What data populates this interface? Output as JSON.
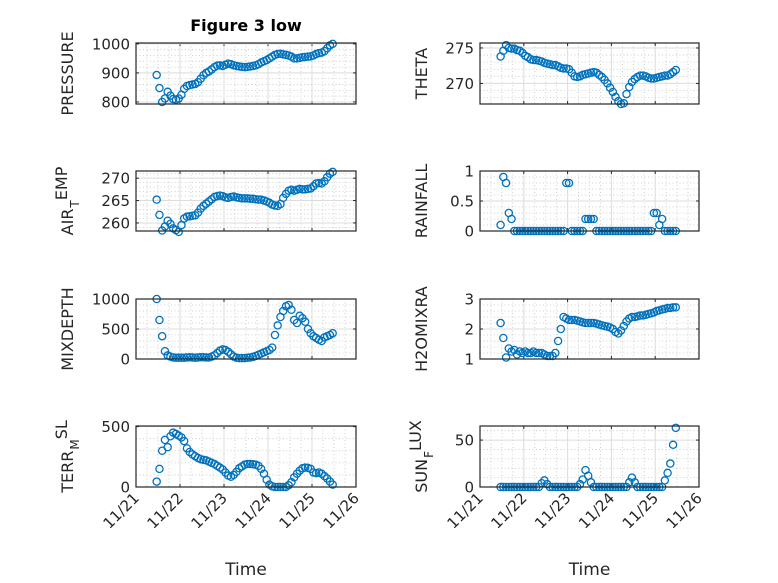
{
  "chart_data": {
    "type": "scatter",
    "title": "Figure 3 low",
    "xlabel": "Time",
    "xlim": [
      0,
      5
    ],
    "xticks": [
      0,
      1,
      2,
      3,
      4,
      5
    ],
    "xtick_labels": [
      "11/21",
      "11/22",
      "11/23",
      "11/24",
      "11/25",
      "11/26"
    ],
    "x_unit": "days since 11/21 00:00",
    "grid": true,
    "marker": "open circle",
    "color": "#0072BD",
    "x": [
      0.47,
      0.533,
      0.595,
      0.658,
      0.72,
      0.783,
      0.845,
      0.908,
      0.97,
      1.033,
      1.095,
      1.158,
      1.22,
      1.283,
      1.345,
      1.408,
      1.47,
      1.533,
      1.595,
      1.658,
      1.72,
      1.783,
      1.845,
      1.908,
      1.97,
      2.033,
      2.095,
      2.158,
      2.22,
      2.283,
      2.345,
      2.408,
      2.47,
      2.533,
      2.595,
      2.658,
      2.72,
      2.783,
      2.845,
      2.908,
      2.97,
      3.033,
      3.095,
      3.158,
      3.22,
      3.283,
      3.345,
      3.408,
      3.47,
      3.533,
      3.595,
      3.658,
      3.72,
      3.783,
      3.845,
      3.908,
      3.97,
      4.033,
      4.095,
      4.158,
      4.22,
      4.283,
      4.345,
      4.408,
      4.47
    ],
    "panels": [
      {
        "ylabel": [
          "PRESSURE"
        ],
        "ylim": [
          793,
          1003
        ],
        "yticks": [
          800,
          900,
          1000
        ],
        "yminor": 20,
        "values": [
          893,
          848,
          800,
          812,
          835,
          822,
          810,
          808,
          812,
          825,
          845,
          855,
          858,
          860,
          862,
          868,
          880,
          892,
          900,
          905,
          912,
          920,
          925,
          926,
          924,
          928,
          932,
          930,
          926,
          924,
          922,
          921,
          920,
          921,
          922,
          924,
          926,
          930,
          936,
          940,
          944,
          950,
          956,
          962,
          965,
          966,
          964,
          962,
          960,
          956,
          950,
          950,
          952,
          954,
          955,
          956,
          957,
          960,
          965,
          968,
          970,
          975,
          985,
          995,
          1000
        ]
      },
      {
        "ylabel": [
          "THETA"
        ],
        "ylim": [
          267.1,
          275.7
        ],
        "yticks": [
          270,
          275
        ],
        "yminor": 1,
        "values": [
          273.8,
          274.6,
          275.4,
          275.0,
          274.9,
          274.9,
          274.7,
          274.6,
          274.3,
          273.9,
          273.7,
          273.4,
          273.3,
          273.3,
          273.2,
          273.1,
          272.9,
          272.8,
          272.7,
          272.6,
          272.6,
          272.4,
          272.2,
          272.1,
          272.1,
          272.0,
          271.5,
          271.0,
          270.9,
          271.0,
          271.2,
          271.3,
          271.4,
          271.5,
          271.6,
          271.5,
          271.2,
          270.9,
          270.5,
          270.0,
          269.4,
          268.8,
          268.1,
          267.5,
          267.1,
          267.2,
          268.5,
          269.5,
          270.2,
          270.6,
          270.9,
          271.1,
          271.1,
          271.0,
          270.8,
          270.7,
          270.7,
          270.8,
          270.9,
          271.0,
          271.1,
          271.1,
          271.3,
          271.6,
          271.9
        ]
      },
      {
        "ylabel": [
          "AIR",
          "T",
          "EMP"
        ],
        "ylim": [
          258.2,
          271.6
        ],
        "yticks": [
          260,
          265,
          270
        ],
        "yminor": 1,
        "values": [
          265.2,
          261.8,
          258.3,
          259.2,
          260.5,
          259.8,
          258.8,
          258.4,
          258.0,
          259.5,
          261.0,
          261.4,
          261.5,
          261.6,
          261.7,
          262.3,
          263.2,
          263.8,
          264.3,
          264.8,
          265.3,
          265.8,
          266.0,
          266.1,
          266.0,
          265.7,
          265.6,
          265.8,
          265.9,
          265.7,
          265.6,
          265.5,
          265.5,
          265.5,
          265.4,
          265.4,
          265.3,
          265.2,
          265.2,
          265.0,
          264.8,
          264.5,
          264.1,
          263.9,
          263.8,
          264.2,
          265.6,
          266.5,
          267.2,
          267.4,
          267.2,
          267.4,
          267.6,
          267.5,
          267.5,
          267.6,
          267.7,
          268.2,
          268.8,
          268.9,
          268.8,
          269.3,
          270.2,
          271.0,
          271.4
        ]
      },
      {
        "ylabel": [
          "RAINFALL"
        ],
        "ylim": [
          0,
          1
        ],
        "yticks": [
          0,
          0.5,
          1
        ],
        "yminor": 0.1,
        "values": [
          0.1,
          0.9,
          0.8,
          0.3,
          0.2,
          0,
          0,
          0,
          0,
          0,
          0,
          0,
          0,
          0,
          0,
          0,
          0,
          0,
          0,
          0,
          0,
          0,
          0,
          0,
          0.8,
          0.8,
          0,
          0,
          0,
          0,
          0,
          0.2,
          0.2,
          0.2,
          0.2,
          0,
          0,
          0,
          0,
          0,
          0,
          0,
          0,
          0,
          0,
          0,
          0,
          0,
          0,
          0,
          0,
          0,
          0,
          0,
          0,
          0,
          0.3,
          0.3,
          0.1,
          0.2,
          0,
          0,
          0,
          0,
          0
        ]
      },
      {
        "ylabel": [
          "MIXDEPTH"
        ],
        "ylim": [
          0,
          1000
        ],
        "yticks": [
          0,
          500,
          1000
        ],
        "yminor": 100,
        "values": [
          1000,
          650,
          380,
          130,
          60,
          40,
          25,
          20,
          20,
          20,
          20,
          25,
          30,
          25,
          20,
          25,
          30,
          30,
          25,
          25,
          40,
          60,
          100,
          140,
          160,
          150,
          120,
          80,
          40,
          20,
          15,
          15,
          15,
          20,
          25,
          35,
          50,
          70,
          90,
          110,
          130,
          150,
          190,
          400,
          560,
          700,
          800,
          880,
          900,
          820,
          650,
          600,
          720,
          680,
          620,
          500,
          430,
          380,
          350,
          320,
          300,
          360,
          380,
          400,
          430
        ]
      },
      {
        "ylabel": [
          "H2OMIXRA"
        ],
        "ylim": [
          1,
          3
        ],
        "yticks": [
          1,
          2,
          3
        ],
        "yminor": 0.2,
        "values": [
          2.2,
          1.7,
          1.05,
          1.35,
          1.25,
          1.3,
          1.15,
          1.25,
          1.2,
          1.25,
          1.2,
          1.2,
          1.25,
          1.2,
          1.2,
          1.2,
          1.15,
          1.1,
          1.1,
          1.1,
          1.2,
          1.6,
          2.0,
          2.4,
          2.35,
          2.3,
          2.3,
          2.3,
          2.28,
          2.25,
          2.22,
          2.2,
          2.2,
          2.2,
          2.2,
          2.18,
          2.15,
          2.12,
          2.1,
          2.08,
          2.05,
          2.0,
          1.9,
          1.85,
          1.95,
          2.1,
          2.25,
          2.35,
          2.4,
          2.4,
          2.42,
          2.45,
          2.45,
          2.47,
          2.5,
          2.52,
          2.55,
          2.6,
          2.62,
          2.65,
          2.67,
          2.7,
          2.7,
          2.72,
          2.72
        ]
      },
      {
        "ylabel": [
          "TERR",
          "M",
          "SL"
        ],
        "ylim": [
          0,
          505
        ],
        "yticks": [
          0,
          500
        ],
        "yminor": 100,
        "values": [
          45,
          150,
          300,
          390,
          330,
          420,
          450,
          440,
          425,
          410,
          380,
          320,
          290,
          270,
          255,
          240,
          230,
          225,
          220,
          210,
          200,
          190,
          175,
          160,
          145,
          120,
          95,
          85,
          100,
          125,
          155,
          170,
          185,
          190,
          190,
          188,
          185,
          175,
          150,
          110,
          60,
          20,
          5,
          0,
          0,
          0,
          0,
          0,
          15,
          40,
          80,
          110,
          135,
          155,
          160,
          158,
          150,
          120,
          115,
          120,
          110,
          90,
          70,
          45,
          20
        ]
      },
      {
        "ylabel": [
          "SUN",
          "F",
          "LUX"
        ],
        "ylim": [
          0,
          65
        ],
        "yticks": [
          0,
          50
        ],
        "yminor": 10,
        "values": [
          0,
          0,
          0,
          0,
          0,
          0,
          0,
          0,
          0,
          0,
          0,
          0,
          0,
          0,
          0,
          4,
          7,
          3,
          0,
          0,
          0,
          0,
          0,
          0,
          0,
          0,
          0,
          0,
          0,
          3,
          8,
          18,
          12,
          5,
          0,
          0,
          0,
          0,
          0,
          0,
          0,
          0,
          0,
          0,
          0,
          0,
          0,
          5,
          10,
          5,
          0,
          0,
          0,
          0,
          0,
          0,
          0,
          0,
          0,
          0,
          7,
          15,
          25,
          45,
          63
        ]
      }
    ]
  }
}
